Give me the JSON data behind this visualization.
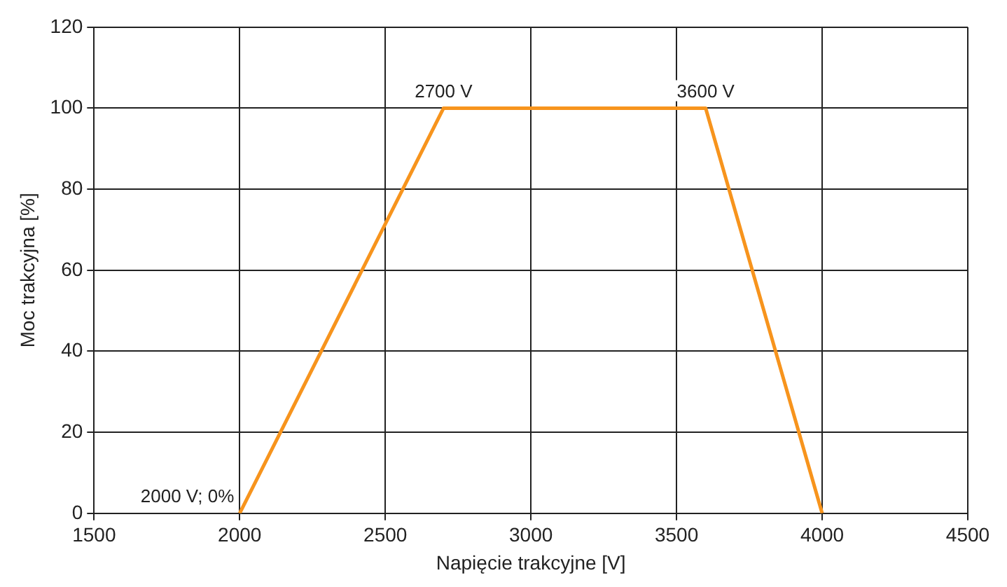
{
  "chart_data": {
    "type": "line",
    "xlabel": "Napięcie trakcyjne [V]",
    "ylabel": "Moc trakcyjna [%]",
    "x": [
      2000,
      2700,
      3600,
      4000
    ],
    "series": [
      {
        "color": "#f7941d",
        "values": [
          0,
          100,
          100,
          0
        ]
      }
    ],
    "xlim": [
      1500,
      4500
    ],
    "xticks": [
      1500,
      2000,
      2500,
      3000,
      3500,
      4000,
      4500
    ],
    "ylim": [
      0,
      120
    ],
    "yticks": [
      0,
      20,
      40,
      60,
      80,
      100,
      120
    ],
    "grid": true,
    "marker": "none",
    "line_style": "solid",
    "annotations": [
      {
        "text": "2700 V",
        "x": 2700,
        "y": 100
      },
      {
        "text": "3600 V",
        "x": 3600,
        "y": 100
      },
      {
        "text": "2000 V; 0%",
        "x": 2000,
        "y": 0
      }
    ]
  }
}
